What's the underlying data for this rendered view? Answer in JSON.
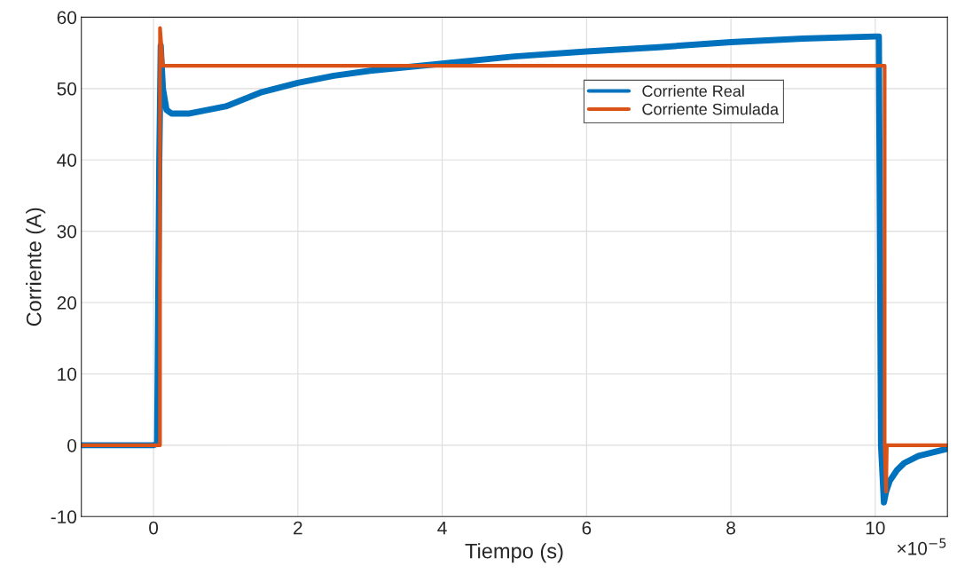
{
  "chart_data": {
    "type": "line",
    "xlabel": "Tiempo (s)",
    "ylabel": "Corriente (A)",
    "xlim": [
      -1,
      11
    ],
    "ylim": [
      -10,
      60
    ],
    "xticks": [
      0,
      2,
      4,
      6,
      8,
      10
    ],
    "yticks": [
      -10,
      0,
      10,
      20,
      30,
      40,
      50,
      60
    ],
    "grid": true,
    "legend": "top right",
    "annotations": [
      "×10$^{−5}$"
    ],
    "series": [
      {
        "name": "Corriente Real",
        "color": "#0072bd",
        "x": [
          -1,
          -0.5,
          0,
          0.05,
          0.08,
          0.1,
          0.13,
          0.18,
          0.25,
          0.5,
          1,
          1.5,
          2,
          2.5,
          3,
          3.5,
          4,
          5,
          6,
          7,
          8,
          9,
          10,
          10.05,
          10.08,
          10.12,
          10.15,
          10.2,
          10.3,
          10.4,
          10.6,
          10.8,
          11
        ],
        "values": [
          0,
          0,
          0,
          0.2,
          40,
          56,
          50,
          47,
          46.5,
          46.5,
          47.5,
          49.5,
          50.8,
          51.8,
          52.5,
          53,
          53.5,
          54.5,
          55.2,
          55.8,
          56.5,
          57,
          57.3,
          57.3,
          0,
          -8,
          -6.5,
          -5,
          -3.5,
          -2.5,
          -1.5,
          -1,
          -0.5
        ]
      },
      {
        "name": "Corriente Simulada",
        "color": "#d95319",
        "x": [
          -1,
          0.09,
          0.09,
          0.13,
          0.15,
          10.13,
          10.13,
          10.15,
          10.16,
          11
        ],
        "values": [
          0,
          0,
          58.5,
          53.2,
          53.2,
          53.2,
          0,
          -6.5,
          0,
          0
        ]
      }
    ]
  }
}
